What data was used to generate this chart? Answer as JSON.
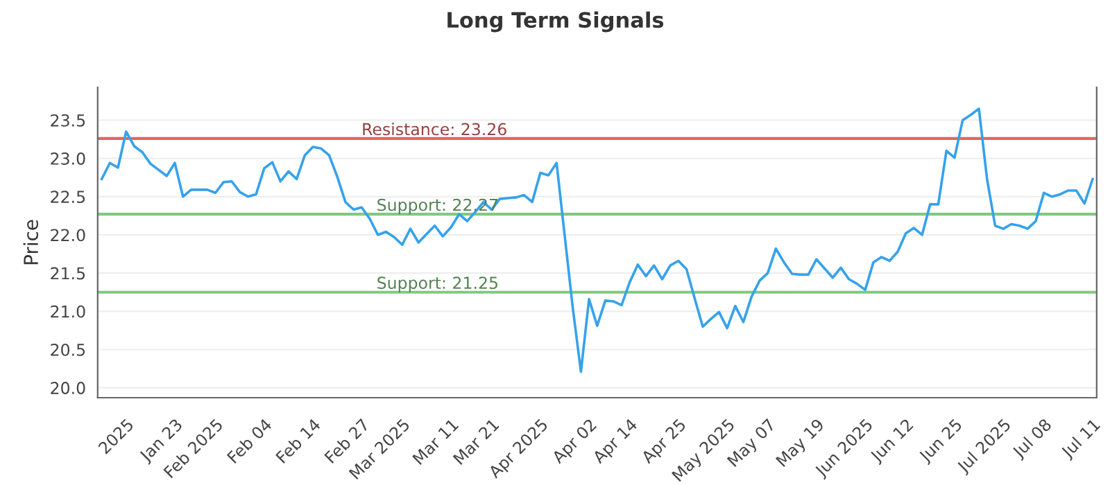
{
  "chart_data": {
    "type": "line",
    "title": "Long Term Signals",
    "ylabel": "Price",
    "categories": [
      null,
      null,
      null,
      "2025",
      null,
      null,
      null,
      null,
      null,
      "Jan 23",
      null,
      null,
      null,
      null,
      "Feb 2025",
      null,
      null,
      null,
      null,
      null,
      "Feb 04",
      null,
      null,
      null,
      null,
      null,
      "Feb 14",
      null,
      null,
      null,
      null,
      null,
      "Feb 27",
      null,
      null,
      null,
      null,
      "Mar 2025",
      null,
      null,
      null,
      null,
      null,
      "Mar 11",
      null,
      null,
      null,
      null,
      "Mar 21",
      null,
      null,
      null,
      null,
      null,
      "Apr 2025",
      null,
      null,
      null,
      null,
      null,
      "Apr 02",
      null,
      null,
      null,
      null,
      "Apr 14",
      null,
      null,
      null,
      null,
      null,
      "Apr 25",
      null,
      null,
      null,
      null,
      null,
      "May 2025",
      null,
      null,
      null,
      null,
      "May 07",
      null,
      null,
      null,
      null,
      null,
      "May 19",
      null,
      null,
      null,
      null,
      null,
      "Jun 2025",
      null,
      null,
      null,
      null,
      "Jun 12",
      null,
      null,
      null,
      null,
      null,
      "Jun 25",
      null,
      null,
      null,
      null,
      null,
      "Jul 2025",
      null,
      null,
      null,
      null,
      "Jul 08",
      null,
      null,
      null,
      null,
      null,
      "Jul 11"
    ],
    "series": [
      {
        "color": "#36a2eb",
        "values": [
          22.73,
          22.94,
          22.88,
          23.35,
          23.16,
          23.08,
          22.93,
          22.85,
          22.77,
          22.94,
          22.5,
          22.59,
          22.59,
          22.59,
          22.55,
          22.69,
          22.7,
          22.56,
          22.5,
          22.53,
          22.87,
          22.95,
          22.7,
          22.83,
          22.73,
          23.04,
          23.15,
          23.13,
          23.04,
          22.76,
          22.43,
          22.33,
          22.36,
          22.21,
          22.0,
          22.04,
          21.97,
          21.87,
          22.08,
          21.9,
          22.01,
          22.12,
          21.98,
          22.1,
          22.27,
          22.18,
          22.3,
          22.43,
          22.33,
          22.47,
          22.48,
          22.49,
          22.52,
          22.43,
          22.81,
          22.78,
          22.94,
          21.99,
          21.04,
          20.21,
          21.16,
          20.81,
          21.14,
          21.13,
          21.08,
          21.38,
          21.61,
          21.46,
          21.6,
          21.42,
          21.6,
          21.66,
          21.55,
          21.17,
          20.8,
          20.9,
          20.99,
          20.78,
          21.07,
          20.86,
          21.19,
          21.4,
          21.5,
          21.82,
          21.64,
          21.49,
          21.48,
          21.48,
          21.68,
          21.56,
          21.44,
          21.57,
          21.42,
          21.36,
          21.28,
          21.64,
          21.71,
          21.66,
          21.78,
          22.02,
          22.09,
          22.0,
          22.4,
          22.4,
          23.1,
          23.01,
          23.5,
          23.57,
          23.65,
          22.73,
          22.12,
          22.08,
          22.14,
          22.12,
          22.08,
          22.18,
          22.55,
          22.5,
          22.53,
          22.58,
          22.58,
          22.41,
          22.73
        ]
      }
    ],
    "ylim": [
      19.87,
      23.93
    ],
    "yticks": [
      {
        "value": 20,
        "label": "20.0"
      },
      {
        "value": 20.5,
        "label": "20.5"
      },
      {
        "value": 21,
        "label": "21.0"
      },
      {
        "value": 21.5,
        "label": "21.5"
      },
      {
        "value": 22,
        "label": "22.0"
      },
      {
        "value": 22.5,
        "label": "22.5"
      },
      {
        "value": 23,
        "label": "23.0"
      },
      {
        "value": 23.5,
        "label": "23.5"
      }
    ],
    "grid": "y",
    "ref_lines": [
      {
        "axis": "y",
        "value": 23.26,
        "label": "Resistance: 23.26",
        "color": "#e06666"
      },
      {
        "axis": "y",
        "value": 22.27,
        "label": "Support: 22.27",
        "color": "#82c882"
      },
      {
        "axis": "y",
        "value": 21.25,
        "label": "Support: 21.25",
        "color": "#82c882"
      }
    ]
  }
}
